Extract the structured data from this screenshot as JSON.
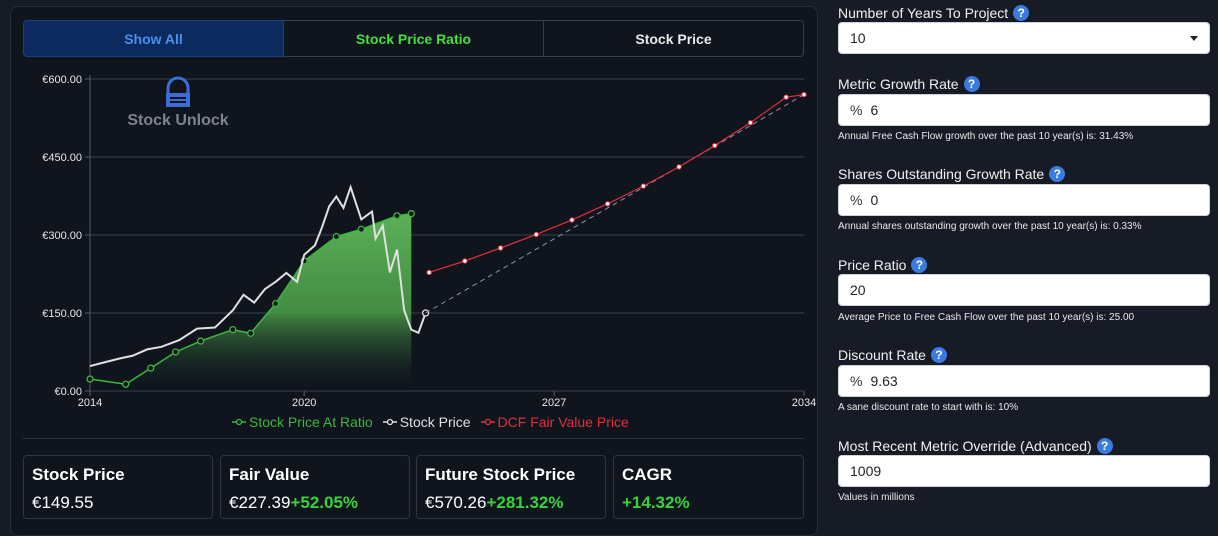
{
  "tabs": [
    "Show All",
    "Stock Price Ratio",
    "Stock Price"
  ],
  "watermark": "Stock Unlock",
  "chart_data": {
    "type": "line",
    "y_ticks": [
      "€0.00",
      "€150.00",
      "€300.00",
      "€450.00",
      "€600.00"
    ],
    "x_ticks": [
      "2014",
      "2020",
      "2027",
      "2034"
    ],
    "xlim": [
      2014,
      2034
    ],
    "ylim": [
      0,
      600
    ],
    "grid": true,
    "legend_position": "bottom",
    "series": [
      {
        "name": "Stock Price At Ratio",
        "color": "#3cb83c",
        "x": [
          2014,
          2015,
          2015.7,
          2016.4,
          2017.1,
          2018,
          2018.5,
          2019.2,
          2020,
          2020.9,
          2021.6,
          2022.6,
          2023
        ],
        "y": [
          23,
          13,
          44,
          75,
          96,
          118,
          111,
          168,
          250,
          297,
          311,
          337,
          341
        ]
      },
      {
        "name": "Stock Price",
        "color": "#e0e0e0",
        "x": [
          2014,
          2014.4,
          2014.8,
          2015.2,
          2015.6,
          2016,
          2016.5,
          2017,
          2017.5,
          2018,
          2018.3,
          2018.6,
          2018.9,
          2019.2,
          2019.5,
          2019.8,
          2020,
          2020.3,
          2020.5,
          2020.7,
          2020.9,
          2021.1,
          2021.3,
          2021.6,
          2021.9,
          2022,
          2022.2,
          2022.4,
          2022.6,
          2022.8,
          2023,
          2023.2,
          2023.4
        ],
        "y": [
          48,
          55,
          62,
          68,
          80,
          85,
          98,
          120,
          122,
          155,
          185,
          170,
          196,
          210,
          227,
          210,
          262,
          280,
          315,
          355,
          374,
          352,
          392,
          330,
          345,
          293,
          318,
          228,
          272,
          155,
          118,
          112,
          150
        ]
      },
      {
        "name": "DCF Fair Value Price",
        "color": "#e0303a",
        "x": [
          2023.5,
          2024.5,
          2025.5,
          2026.5,
          2027.5,
          2028.5,
          2029.5,
          2030.5,
          2031.5,
          2032.5,
          2033.5,
          2034
        ],
        "y": [
          228,
          250,
          275,
          301,
          329,
          360,
          394,
          431,
          472,
          516,
          565,
          570
        ]
      }
    ]
  },
  "legend": [
    "Stock Price At Ratio",
    "Stock Price",
    "DCF Fair Value Price"
  ],
  "stats": {
    "stock_price": {
      "title": "Stock Price",
      "value": "€149.55"
    },
    "fair_value": {
      "title": "Fair Value",
      "value": "€227.39",
      "change": "+52.05%"
    },
    "future_price": {
      "title": "Future Stock Price",
      "value": "€570.26",
      "change": "+281.32%"
    },
    "cagr": {
      "title": "CAGR",
      "change": "+14.32%"
    }
  },
  "sidebar": {
    "years": {
      "label": "Number of Years To Project",
      "value": "10"
    },
    "metric_growth": {
      "label": "Metric Growth Rate",
      "prefix": "%",
      "value": "6",
      "hint": "Annual Free Cash Flow growth over the past 10 year(s) is: 31.43%"
    },
    "shares_growth": {
      "label": "Shares Outstanding Growth Rate",
      "prefix": "%",
      "value": "0",
      "hint": "Annual shares outstanding growth over the past 10 year(s) is: 0.33%"
    },
    "price_ratio": {
      "label": "Price Ratio",
      "value": "20",
      "hint": "Average Price to Free Cash Flow over the past 10 year(s) is: 25.00"
    },
    "discount": {
      "label": "Discount Rate",
      "prefix": "%",
      "value": "9.63",
      "hint": "A sane discount rate to start with is: 10%"
    },
    "override": {
      "label": "Most Recent Metric Override (Advanced)",
      "value": "1009",
      "hint": "Values in millions"
    }
  },
  "help_glyph": "?"
}
